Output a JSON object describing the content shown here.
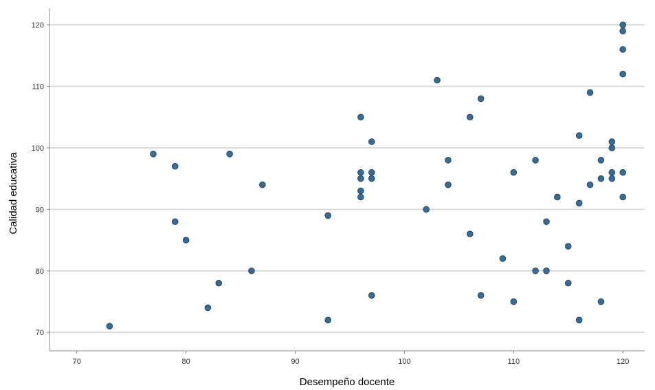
{
  "chart_data": {
    "type": "scatter",
    "title": "",
    "xlabel": "Desempeño docente",
    "ylabel": "Calidad educativa",
    "xlim": [
      67.5,
      122
    ],
    "ylim": [
      67,
      122.7
    ],
    "xticks": [
      70,
      80,
      90,
      100,
      110,
      120
    ],
    "yticks": [
      70,
      80,
      90,
      100,
      110,
      120
    ],
    "grid": "horizontal",
    "legend": "none",
    "colors": {
      "point": "#3a6b93",
      "point_edge": "#23466a",
      "grid": "#d4d4d4",
      "axis": "#888888",
      "background": "#ffffff"
    },
    "points": [
      {
        "x": 73,
        "y": 71
      },
      {
        "x": 77,
        "y": 99
      },
      {
        "x": 79,
        "y": 97
      },
      {
        "x": 79,
        "y": 88
      },
      {
        "x": 80,
        "y": 85
      },
      {
        "x": 82,
        "y": 74
      },
      {
        "x": 83,
        "y": 78
      },
      {
        "x": 84,
        "y": 99
      },
      {
        "x": 86,
        "y": 80
      },
      {
        "x": 87,
        "y": 94
      },
      {
        "x": 93,
        "y": 89
      },
      {
        "x": 93,
        "y": 72
      },
      {
        "x": 96,
        "y": 105
      },
      {
        "x": 96,
        "y": 96
      },
      {
        "x": 96,
        "y": 95
      },
      {
        "x": 96,
        "y": 93
      },
      {
        "x": 96,
        "y": 92
      },
      {
        "x": 97,
        "y": 101
      },
      {
        "x": 97,
        "y": 96
      },
      {
        "x": 97,
        "y": 95
      },
      {
        "x": 97,
        "y": 76
      },
      {
        "x": 102,
        "y": 90
      },
      {
        "x": 103,
        "y": 111
      },
      {
        "x": 104,
        "y": 98
      },
      {
        "x": 104,
        "y": 94
      },
      {
        "x": 106,
        "y": 105
      },
      {
        "x": 106,
        "y": 86
      },
      {
        "x": 107,
        "y": 108
      },
      {
        "x": 107,
        "y": 76
      },
      {
        "x": 109,
        "y": 82
      },
      {
        "x": 110,
        "y": 96
      },
      {
        "x": 110,
        "y": 75
      },
      {
        "x": 112,
        "y": 98
      },
      {
        "x": 112,
        "y": 80
      },
      {
        "x": 113,
        "y": 88
      },
      {
        "x": 113,
        "y": 80
      },
      {
        "x": 114,
        "y": 92
      },
      {
        "x": 115,
        "y": 84
      },
      {
        "x": 115,
        "y": 78
      },
      {
        "x": 116,
        "y": 102
      },
      {
        "x": 116,
        "y": 91
      },
      {
        "x": 116,
        "y": 72
      },
      {
        "x": 117,
        "y": 109
      },
      {
        "x": 117,
        "y": 94
      },
      {
        "x": 118,
        "y": 98
      },
      {
        "x": 118,
        "y": 95
      },
      {
        "x": 118,
        "y": 75
      },
      {
        "x": 119,
        "y": 101
      },
      {
        "x": 119,
        "y": 100
      },
      {
        "x": 119,
        "y": 96
      },
      {
        "x": 119,
        "y": 95
      },
      {
        "x": 120,
        "y": 120
      },
      {
        "x": 120,
        "y": 119
      },
      {
        "x": 120,
        "y": 116
      },
      {
        "x": 120,
        "y": 112
      },
      {
        "x": 120,
        "y": 96
      },
      {
        "x": 120,
        "y": 92
      }
    ]
  }
}
